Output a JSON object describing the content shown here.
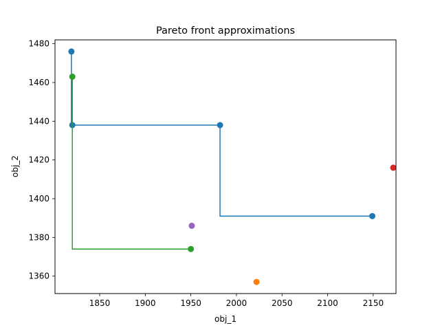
{
  "chart_data": {
    "type": "line",
    "title": "Pareto front approximations",
    "xlabel": "obj_1",
    "ylabel": "obj_2",
    "xlim": [
      1801,
      2175
    ],
    "ylim": [
      1351,
      1482
    ],
    "xticks": [
      1850,
      1900,
      1950,
      2000,
      2050,
      2100,
      2150
    ],
    "yticks": [
      1360,
      1380,
      1400,
      1420,
      1440,
      1460,
      1480
    ],
    "grid": false,
    "legend": "none",
    "series": [
      {
        "color": "#1f77b4",
        "step_line": true,
        "points": [
          [
            1819,
            1476
          ],
          [
            1820,
            1438
          ],
          [
            1982,
            1438
          ],
          [
            2149,
            1391
          ]
        ]
      },
      {
        "color": "#ff7f0e",
        "step_line": false,
        "points": [
          [
            2022,
            1357
          ]
        ]
      },
      {
        "color": "#2ca02c",
        "step_line": true,
        "points": [
          [
            1820,
            1463
          ],
          [
            1950,
            1374
          ]
        ]
      },
      {
        "color": "#d62728",
        "step_line": false,
        "points": [
          [
            2172,
            1416
          ]
        ]
      },
      {
        "color": "#9467bd",
        "step_line": false,
        "points": [
          [
            1951,
            1386
          ]
        ]
      }
    ]
  }
}
